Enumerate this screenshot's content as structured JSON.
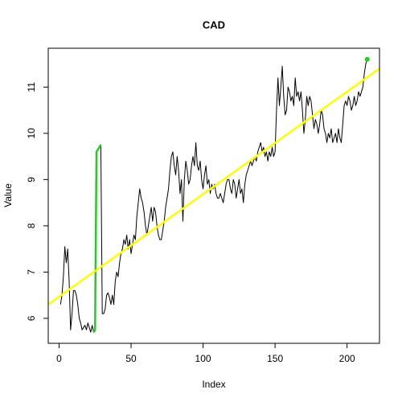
{
  "chart_data": {
    "type": "line",
    "title": "CAD",
    "x_label": "Index",
    "y_label": "Value",
    "xlim": [
      -7.52,
      222.52
    ],
    "ylim": [
      5.46,
      11.84
    ],
    "xticks": [
      0,
      50,
      100,
      150,
      200
    ],
    "yticks": [
      6,
      7,
      8,
      9,
      10,
      11
    ],
    "series": [
      {
        "color": "#000000",
        "x": [
          1,
          2,
          3,
          4,
          5,
          6,
          7,
          8,
          9,
          10,
          11,
          12,
          13,
          14,
          15,
          16,
          17,
          18,
          19,
          20,
          21,
          22,
          23,
          24,
          25,
          26,
          27,
          28,
          29,
          30,
          31,
          32,
          33,
          34,
          35,
          36,
          37,
          38,
          39,
          40,
          41,
          42,
          43,
          44,
          45,
          46,
          47,
          48,
          49,
          50,
          51,
          52,
          53,
          54,
          55,
          56,
          57,
          58,
          59,
          60,
          61,
          62,
          63,
          64,
          65,
          66,
          67,
          68,
          69,
          70,
          71,
          72,
          73,
          74,
          75,
          76,
          77,
          78,
          79,
          80,
          81,
          82,
          83,
          84,
          85,
          86,
          87,
          88,
          89,
          90,
          91,
          92,
          93,
          94,
          95,
          96,
          97,
          98,
          99,
          100,
          101,
          102,
          103,
          104,
          105,
          106,
          107,
          108,
          109,
          110,
          111,
          112,
          113,
          114,
          115,
          116,
          117,
          118,
          119,
          120,
          121,
          122,
          123,
          124,
          125,
          126,
          127,
          128,
          129,
          130,
          131,
          132,
          133,
          134,
          135,
          136,
          137,
          138,
          139,
          140,
          141,
          142,
          143,
          144,
          145,
          146,
          147,
          148,
          149,
          150,
          151,
          152,
          153,
          154,
          155,
          156,
          157,
          158,
          159,
          160,
          161,
          162,
          163,
          164,
          165,
          166,
          167,
          168,
          169,
          170,
          171,
          172,
          173,
          174,
          175,
          176,
          177,
          178,
          179,
          180,
          181,
          182,
          183,
          184,
          185,
          186,
          187,
          188,
          189,
          190,
          191,
          192,
          193,
          194,
          195,
          196,
          197,
          198,
          199,
          200,
          201,
          202,
          203,
          204,
          205,
          206,
          207,
          208,
          209,
          210,
          211,
          212,
          213,
          214
        ],
        "values": [
          6.3,
          6.5,
          6.9,
          7.55,
          7.2,
          7.5,
          6.8,
          5.75,
          6.1,
          6.6,
          6.6,
          6.5,
          6.3,
          6.0,
          5.9,
          5.75,
          5.8,
          5.85,
          5.75,
          5.9,
          5.8,
          5.7,
          5.85,
          5.7,
          5.75,
          9.6,
          9.65,
          9.7,
          9.75,
          6.1,
          6.1,
          6.2,
          6.5,
          6.55,
          6.45,
          6.3,
          6.5,
          6.3,
          6.8,
          7.0,
          6.9,
          7.2,
          7.4,
          7.5,
          7.7,
          7.6,
          7.8,
          7.5,
          7.7,
          7.4,
          7.6,
          7.8,
          7.7,
          8.2,
          8.5,
          8.8,
          8.6,
          8.5,
          8.3,
          8.0,
          7.8,
          8.0,
          8.2,
          8.4,
          8.1,
          8.4,
          8.3,
          8.0,
          7.8,
          7.7,
          7.7,
          7.9,
          8.1,
          8.4,
          8.6,
          8.8,
          9.2,
          9.5,
          9.6,
          9.3,
          9.1,
          9.5,
          9.2,
          8.7,
          9.0,
          8.1,
          9.0,
          9.4,
          9.2,
          8.9,
          9.0,
          9.3,
          9.5,
          9.3,
          9.8,
          9.3,
          9.2,
          9.4,
          9.0,
          8.8,
          9.1,
          9.3,
          8.9,
          9.0,
          8.7,
          8.9,
          8.8,
          8.9,
          8.7,
          8.6,
          8.6,
          8.7,
          8.6,
          8.5,
          8.7,
          8.9,
          9.0,
          9.0,
          8.8,
          8.7,
          9.0,
          8.9,
          8.6,
          8.8,
          9.0,
          8.7,
          8.8,
          8.5,
          8.9,
          9.1,
          9.2,
          9.3,
          9.4,
          9.3,
          9.4,
          9.5,
          9.4,
          9.6,
          9.7,
          9.8,
          9.6,
          9.7,
          9.5,
          9.6,
          9.4,
          9.6,
          9.5,
          9.7,
          9.5,
          9.6,
          10.5,
          11.2,
          10.6,
          11.0,
          11.45,
          10.8,
          10.4,
          10.5,
          11.0,
          10.9,
          10.7,
          10.8,
          10.6,
          11.2,
          10.8,
          10.9,
          10.7,
          10.9,
          10.5,
          10.0,
          10.3,
          10.8,
          10.6,
          10.8,
          10.7,
          10.4,
          10.1,
          10.3,
          10.2,
          10.0,
          10.2,
          10.5,
          10.4,
          10.1,
          10.0,
          9.8,
          10.0,
          9.9,
          10.1,
          9.8,
          9.9,
          10.0,
          9.8,
          10.1,
          9.9,
          9.8,
          10.2,
          10.6,
          10.7,
          10.6,
          10.8,
          10.7,
          10.5,
          10.6,
          10.8,
          10.6,
          10.7,
          10.9,
          10.8,
          10.9,
          11.0,
          11.3,
          11.5,
          11.6
        ]
      },
      {
        "color": "#22cc22",
        "x": [
          24,
          25,
          26,
          27,
          28,
          29
        ],
        "values": [
          5.7,
          5.75,
          9.6,
          9.65,
          9.7,
          9.75
        ]
      },
      {
        "color": "#ffff00",
        "x": [
          -7.52,
          222.52
        ],
        "values": [
          6.3,
          11.4
        ]
      },
      {
        "color": "#22cc22",
        "marker": "point",
        "x": [
          214
        ],
        "values": [
          11.6
        ]
      }
    ]
  }
}
